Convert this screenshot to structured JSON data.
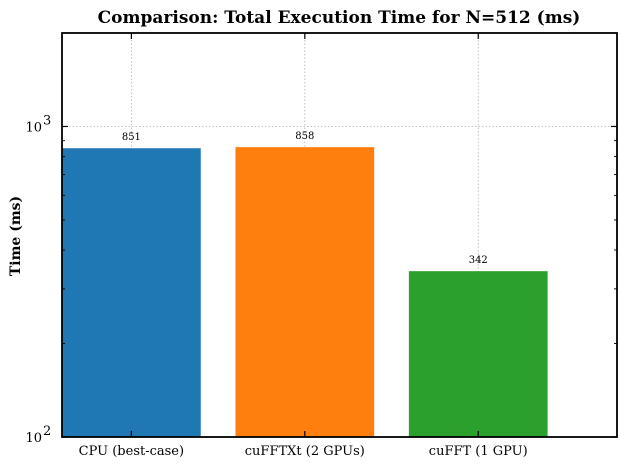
{
  "chart_data": {
    "type": "bar",
    "title": "Comparison: Total Execution Time for N=512 (ms)",
    "xlabel": "",
    "ylabel": "Time (ms)",
    "yscale": "log",
    "ylim": [
      100,
      2000
    ],
    "grid": true,
    "categories": [
      "CPU (best-case)",
      "cuFFTXt (2 GPUs)",
      "cuFFT (1 GPU)"
    ],
    "values": [
      851,
      858,
      342
    ],
    "data_labels": [
      "851",
      "858",
      "342"
    ],
    "colors": [
      "#1f77b4",
      "#ff7f0e",
      "#2ca02c"
    ],
    "y_major_ticks": [
      100,
      1000
    ],
    "y_tick_labels": [
      "10",
      "10"
    ],
    "y_tick_exponents": [
      "2",
      "3"
    ]
  }
}
